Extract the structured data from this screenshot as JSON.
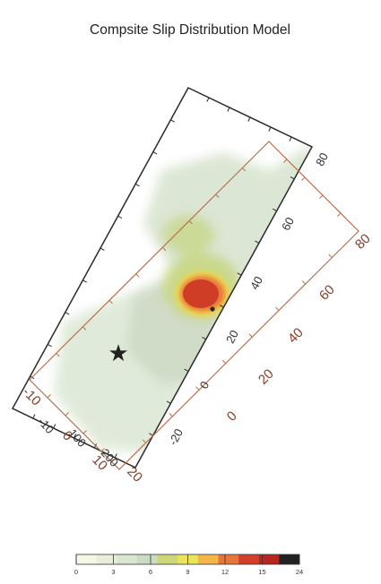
{
  "chart_data": {
    "type": "heatmap",
    "title": "Compsite Slip Distribution Model",
    "xlabel": "",
    "ylabel": "",
    "colorbar": {
      "ticks": [
        "0",
        "3",
        "6",
        "9",
        "12",
        "15",
        "24"
      ],
      "range": [
        0,
        24
      ],
      "colors": [
        "#f6f7e6",
        "#e9efd7",
        "#d9e7cf",
        "#c9dcc3",
        "#cdd77a",
        "#e8e45c",
        "#f4b64a",
        "#e6763a",
        "#d2402a",
        "#b8271f",
        "#222222"
      ]
    },
    "black_fault_ticks": {
      "along_strike": [
        "-10",
        "100",
        "200"
      ],
      "right_side": [
        "80",
        "60",
        "40",
        "20",
        "0",
        "-20"
      ]
    },
    "brown_fault_ticks": {
      "left_side": [
        "-10",
        "0",
        "10",
        "20"
      ],
      "right_side": [
        "80",
        "60",
        "40",
        "20",
        "0"
      ]
    },
    "markers": [
      {
        "name": "star",
        "symbol": "★"
      }
    ]
  }
}
